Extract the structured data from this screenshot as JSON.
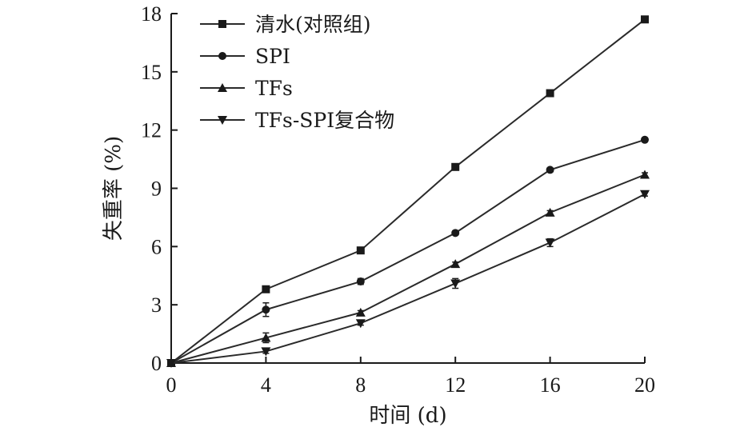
{
  "chart_data": {
    "type": "line",
    "xlabel": "时间 (d)",
    "ylabel": "失重率 (%)",
    "xlim": [
      0,
      20
    ],
    "ylim": [
      0,
      18
    ],
    "x_ticks": [
      0,
      4,
      8,
      12,
      16,
      20
    ],
    "y_ticks": [
      0,
      3,
      6,
      9,
      12,
      15,
      18
    ],
    "x": [
      0,
      4,
      8,
      12,
      16,
      20
    ],
    "legend_position": "top-left",
    "grid": false,
    "series": [
      {
        "name": "清水(对照组)",
        "marker": "square",
        "values": [
          0,
          3.8,
          5.8,
          10.1,
          13.9,
          17.7
        ],
        "errors": [
          0,
          0.1,
          0.1,
          0.15,
          0.1,
          0.1
        ]
      },
      {
        "name": "SPI",
        "marker": "circle",
        "values": [
          0,
          2.75,
          4.2,
          6.7,
          9.95,
          11.5
        ],
        "errors": [
          0,
          0.35,
          0.15,
          0.1,
          0.1,
          0.1
        ]
      },
      {
        "name": "TFs",
        "marker": "triangle-up",
        "values": [
          0,
          1.3,
          2.6,
          5.1,
          7.75,
          9.7
        ],
        "errors": [
          0,
          0.25,
          0.1,
          0.1,
          0.1,
          0.1
        ]
      },
      {
        "name": "TFs-SPI复合物",
        "marker": "triangle-down",
        "values": [
          0,
          0.6,
          2.05,
          4.1,
          6.2,
          8.7
        ],
        "errors": [
          0,
          0.1,
          0.1,
          0.25,
          0.2,
          0.1
        ]
      }
    ]
  }
}
